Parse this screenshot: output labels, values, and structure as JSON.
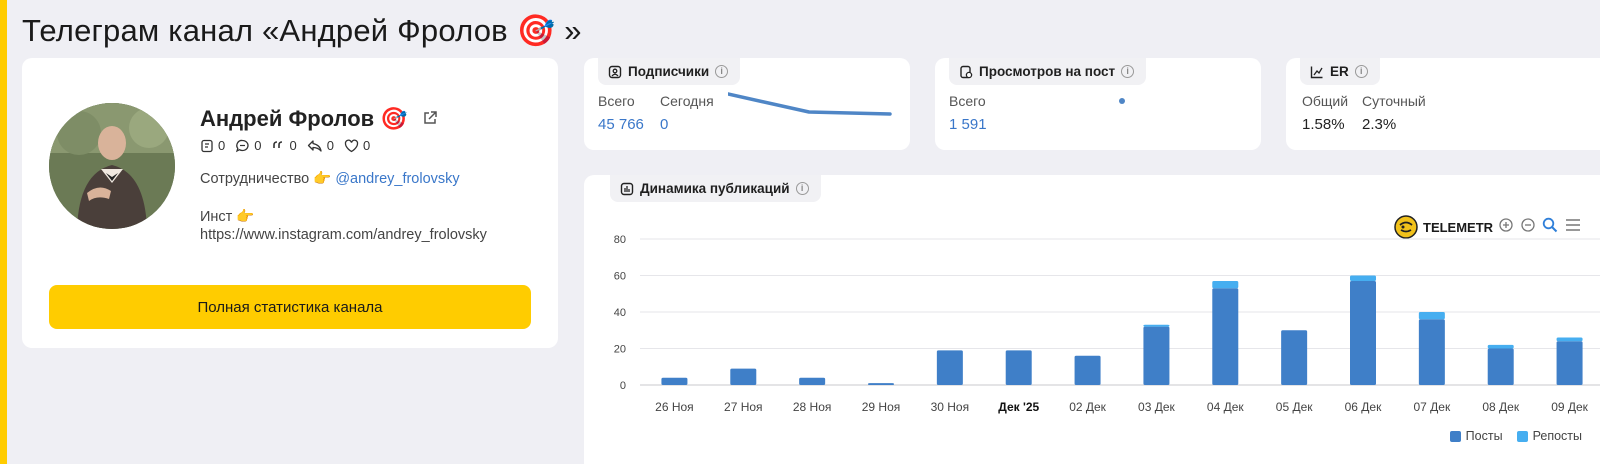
{
  "page": {
    "title": "Телеграм канал «Андрей Фролов 🎯 »"
  },
  "profile": {
    "name": "Андрей Фролов 🎯",
    "stats": {
      "posts": "0",
      "comments": "0",
      "quotes": "0",
      "reposts": "0",
      "likes": "0"
    },
    "cooperation_text": "Сотрудничество 👉",
    "cooperation_handle": "@andrey_frolovsky",
    "inst_text": "Инст 👉",
    "inst_url": "https://www.instagram.com/andrey_frolovsky",
    "full_stats_button": "Полная статистика канала"
  },
  "subscribers": {
    "tab_label": "Подписчики",
    "total_label": "Всего",
    "today_label": "Сегодня",
    "total_value": "45 766",
    "today_value": "0"
  },
  "views": {
    "tab_label": "Просмотров на пост",
    "total_label": "Всего",
    "total_value": "1 591"
  },
  "er": {
    "tab_label": "ER",
    "overall_label": "Общий",
    "daily_label": "Суточный",
    "overall_value": "1.58%",
    "daily_value": "2.3%"
  },
  "dynamics": {
    "tab_label": "Динамика публикаций",
    "logo_text": "TELEMETR"
  },
  "colors": {
    "accent": "#ffcc00",
    "link": "#3a77c9",
    "posts": "#3f7fc8",
    "reposts": "#46aef0",
    "spark": "#4f86c6"
  },
  "chart_data": {
    "type": "bar",
    "stacked": true,
    "categories": [
      "26 Ноя",
      "27 Ноя",
      "28 Ноя",
      "29 Ноя",
      "30 Ноя",
      "Дек '25",
      "02 Дек",
      "03 Дек",
      "04 Дек",
      "05 Дек",
      "06 Дек",
      "07 Дек",
      "08 Дек",
      "09 Дек"
    ],
    "series": [
      {
        "name": "Посты",
        "values": [
          4,
          9,
          4,
          1,
          19,
          19,
          16,
          32,
          53,
          30,
          57,
          36,
          20,
          24
        ]
      },
      {
        "name": "Репосты",
        "values": [
          0,
          0,
          0,
          0,
          0,
          0,
          0,
          1,
          4,
          0,
          3,
          4,
          2,
          2
        ]
      }
    ],
    "y_ticks": [
      "0",
      "20",
      "40",
      "60",
      "80"
    ],
    "ylim": [
      0,
      80
    ],
    "grid": true,
    "legend": "bottom-right"
  },
  "subscribers_spark": {
    "type": "line",
    "values": [
      3,
      1.2,
      1
    ]
  }
}
